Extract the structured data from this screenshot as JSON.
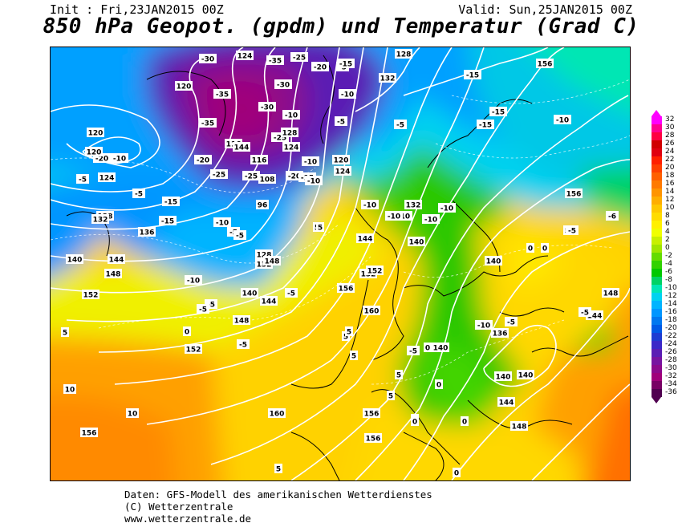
{
  "header": {
    "init": "Init : Fri,23JAN2015 00Z",
    "valid": "Valid: Sun,25JAN2015 00Z",
    "title": "850 hPa Geopot. (gpdm) und Temperatur (Grad C)"
  },
  "legend": {
    "labels": [
      "32",
      "30",
      "28",
      "26",
      "24",
      "22",
      "20",
      "18",
      "16",
      "14",
      "12",
      "10",
      "8",
      "6",
      "4",
      "2",
      "0",
      "-2",
      "-4",
      "-6",
      "-8",
      "-10",
      "-12",
      "-14",
      "-16",
      "-18",
      "-20",
      "-22",
      "-24",
      "-26",
      "-28",
      "-30",
      "-32",
      "-34",
      "-36"
    ],
    "colors": [
      "#ff00ff",
      "#ff0090",
      "#ff0040",
      "#d00000",
      "#e00010",
      "#ff2000",
      "#ff4000",
      "#ff6000",
      "#ff7a00",
      "#ff9400",
      "#ffae00",
      "#ffc800",
      "#ffdc00",
      "#fff000",
      "#f0ff00",
      "#c8f000",
      "#a0e600",
      "#64dc00",
      "#32d200",
      "#00c800",
      "#00d264",
      "#00e6b4",
      "#00d2f0",
      "#00b4ff",
      "#0096ff",
      "#0078f0",
      "#005ae6",
      "#1e3cd2",
      "#3c28c8",
      "#5a1eb4",
      "#7814a0",
      "#8c0a8c",
      "#a0007a",
      "#780064",
      "#500050"
    ]
  },
  "map_labels": [
    {
      "text": "-30"
    },
    {
      "text": "124"
    },
    {
      "text": "-35"
    },
    {
      "text": "-25"
    },
    {
      "text": "128"
    },
    {
      "text": "156"
    },
    {
      "text": "120"
    },
    {
      "text": "-35"
    },
    {
      "text": "-30"
    },
    {
      "text": "-20"
    },
    {
      "text": "132"
    },
    {
      "text": "-15"
    },
    {
      "text": "-35"
    },
    {
      "text": "-30"
    },
    {
      "text": "-25"
    },
    {
      "text": "-10"
    },
    {
      "text": "-5"
    },
    {
      "text": "-10"
    },
    {
      "text": "120"
    },
    {
      "text": "-20"
    },
    {
      "text": "-10"
    },
    {
      "text": "116"
    },
    {
      "text": "-20"
    },
    {
      "text": "-15"
    },
    {
      "text": "128"
    },
    {
      "text": "-25"
    },
    {
      "text": "-5"
    },
    {
      "text": "-5"
    },
    {
      "text": "-10"
    },
    {
      "text": "-15"
    },
    {
      "text": "-5"
    },
    {
      "text": "124"
    },
    {
      "text": "116"
    },
    {
      "text": "-20"
    },
    {
      "text": "120"
    },
    {
      "text": "124"
    },
    {
      "text": "-5"
    },
    {
      "text": "-10"
    },
    {
      "text": "-15"
    },
    {
      "text": "-10"
    },
    {
      "text": "144"
    },
    {
      "text": "-15"
    },
    {
      "text": "120"
    },
    {
      "text": "124"
    },
    {
      "text": "-15"
    },
    {
      "text": "-25"
    },
    {
      "text": "108"
    },
    {
      "text": "-10"
    },
    {
      "text": "128"
    },
    {
      "text": "-15"
    },
    {
      "text": "-10"
    },
    {
      "text": "132"
    },
    {
      "text": "-10"
    },
    {
      "text": "156"
    },
    {
      "text": "132"
    },
    {
      "text": "136"
    },
    {
      "text": "-10"
    },
    {
      "text": "96"
    },
    {
      "text": "-10"
    },
    {
      "text": "-10"
    },
    {
      "text": "148"
    },
    {
      "text": "152"
    },
    {
      "text": "-5"
    },
    {
      "text": "5"
    },
    {
      "text": "-5"
    },
    {
      "text": "5"
    },
    {
      "text": "140"
    },
    {
      "text": "144"
    },
    {
      "text": "144"
    },
    {
      "text": "140"
    },
    {
      "text": "0"
    },
    {
      "text": "-5"
    },
    {
      "text": "144"
    },
    {
      "text": "148"
    },
    {
      "text": "128"
    },
    {
      "text": "132"
    },
    {
      "text": "140"
    },
    {
      "text": "0"
    },
    {
      "text": "148"
    },
    {
      "text": "-10"
    },
    {
      "text": "136"
    },
    {
      "text": "152"
    },
    {
      "text": "152"
    },
    {
      "text": "-5"
    },
    {
      "text": "152"
    },
    {
      "text": "140"
    },
    {
      "text": "156"
    },
    {
      "text": "-5"
    },
    {
      "text": "5"
    },
    {
      "text": "148"
    },
    {
      "text": "5"
    },
    {
      "text": "0"
    },
    {
      "text": "-5"
    },
    {
      "text": "144"
    },
    {
      "text": "148"
    },
    {
      "text": "160"
    },
    {
      "text": "5"
    },
    {
      "text": "5"
    },
    {
      "text": "136"
    },
    {
      "text": "152"
    },
    {
      "text": "-5"
    },
    {
      "text": "140"
    },
    {
      "text": "5"
    },
    {
      "text": "0"
    },
    {
      "text": "10"
    },
    {
      "text": "140"
    },
    {
      "text": "140"
    },
    {
      "text": "5"
    },
    {
      "text": "0"
    },
    {
      "text": "5"
    },
    {
      "text": "10"
    },
    {
      "text": "160"
    },
    {
      "text": "156"
    },
    {
      "text": "0"
    },
    {
      "text": "144"
    },
    {
      "text": "156"
    },
    {
      "text": "156"
    },
    {
      "text": "0"
    },
    {
      "text": "148"
    },
    {
      "text": "5"
    },
    {
      "text": "0"
    },
    {
      "text": "0"
    },
    {
      "text": "-5"
    },
    {
      "text": "-10"
    },
    {
      "text": "-6"
    },
    {
      "text": "-5"
    },
    {
      "text": "-5"
    }
  ],
  "footer": {
    "line1": "Daten: GFS-Modell des amerikanischen Wetterdienstes",
    "line2": "(C) Wetterzentrale",
    "line3": "www.wetterzentrale.de"
  }
}
